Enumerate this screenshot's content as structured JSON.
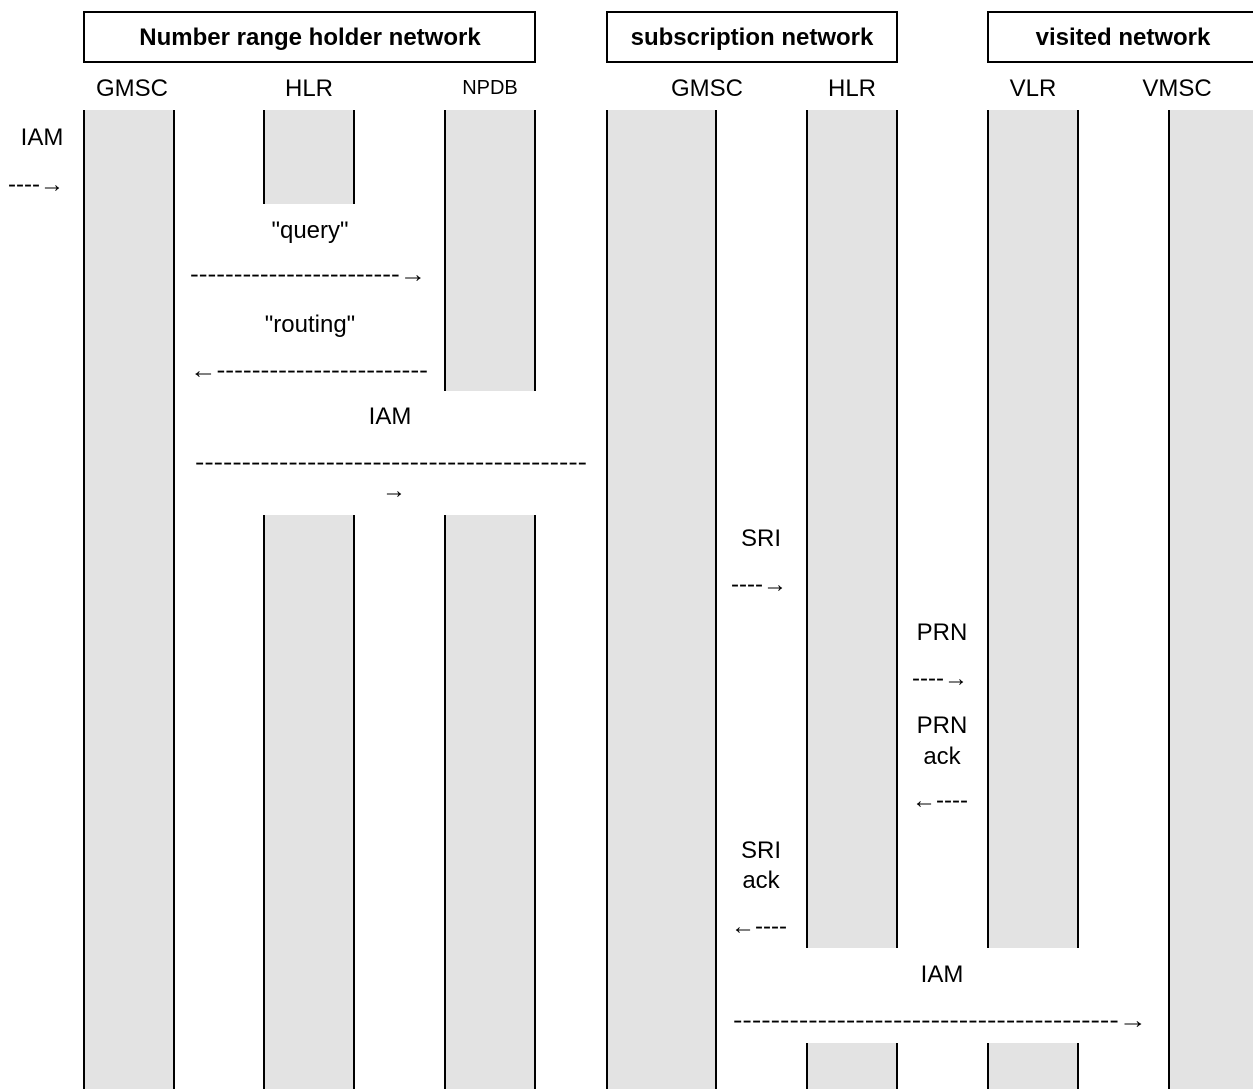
{
  "networks": {
    "number_range_holder": "Number range holder network",
    "subscription": "subscription network",
    "visited": "visited network"
  },
  "entities": {
    "nrh_gmsc": "GMSC",
    "nrh_hlr": "HLR",
    "nrh_npdb": "NPDB",
    "sub_gmsc": "GMSC",
    "sub_hlr": "HLR",
    "vis_vlr": "VLR",
    "vis_vmsc": "VMSC"
  },
  "messages": {
    "iam_incoming": "IAM",
    "iam_incoming_arrow": "----→",
    "query": "\"query\"",
    "query_arrow": "------------------------→",
    "routing": "\"routing\"",
    "routing_arrow": "←------------------------",
    "iam_forward": "IAM",
    "iam_forward_dashes": "------------------------------------------",
    "iam_forward_arrowhead": "→",
    "sri": "SRI",
    "sri_arrow": "----→",
    "prn": "PRN",
    "prn_arrow": "----→",
    "prn_ack_line1": "PRN",
    "prn_ack_line2": "ack",
    "prn_ack_arrow": "←----",
    "sri_ack_line1": "SRI",
    "sri_ack_line2": "ack",
    "sri_ack_arrow": "←----",
    "iam_final": "IAM",
    "iam_final_arrow": "-----------------------------------------→"
  }
}
